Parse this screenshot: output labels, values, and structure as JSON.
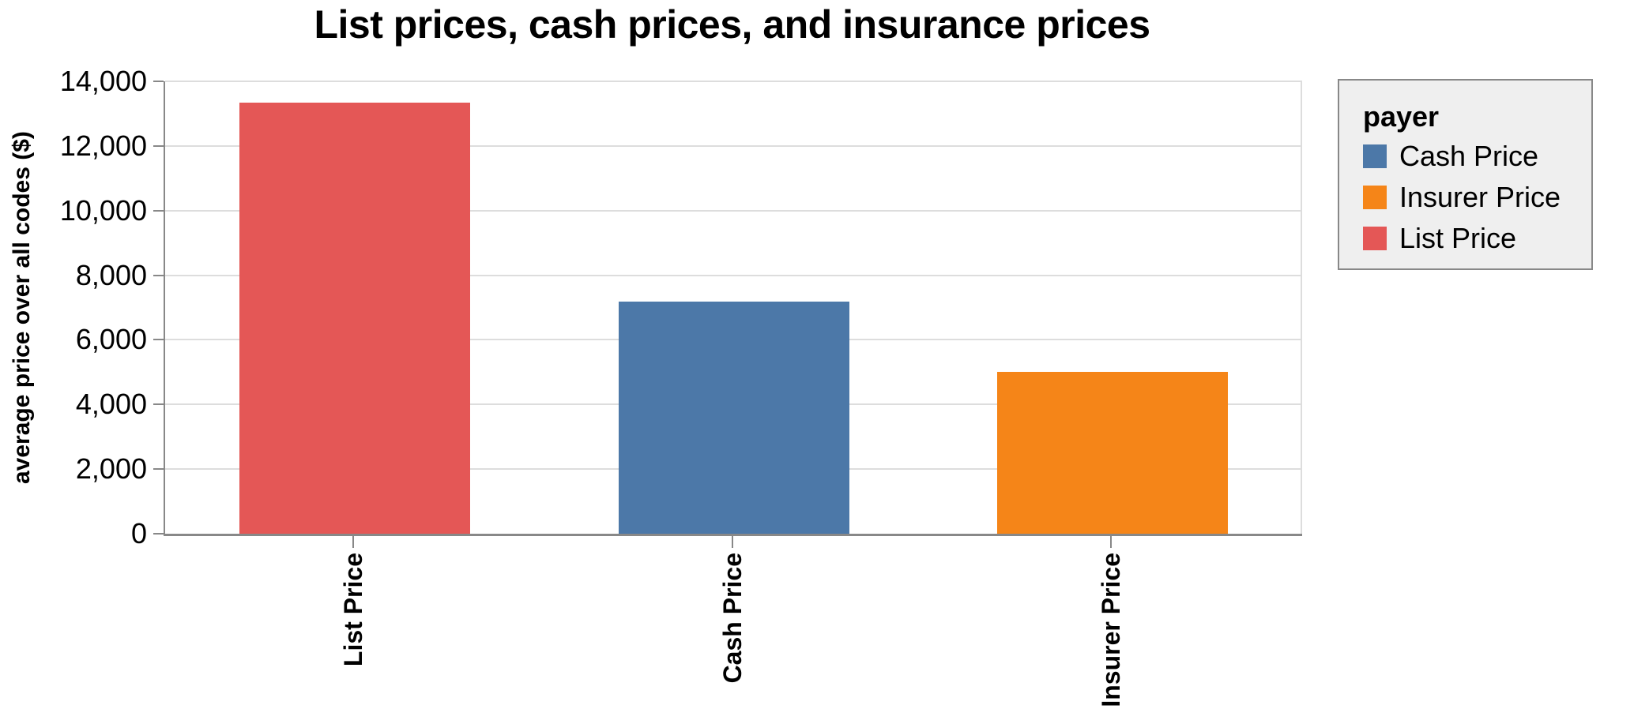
{
  "chart_data": {
    "type": "bar",
    "title": "List prices, cash prices, and insurance prices",
    "ylabel": "average price over all codes ($)",
    "xlabel": "",
    "categories": [
      "List Price",
      "Cash Price",
      "Insurer Price"
    ],
    "values": [
      13350,
      7180,
      5010
    ],
    "bar_colors": [
      "#e45756",
      "#4c78a8",
      "#f58518"
    ],
    "ylim": [
      0,
      14000
    ],
    "yticks": [
      0,
      2000,
      4000,
      6000,
      8000,
      10000,
      12000,
      14000
    ],
    "ytick_labels": [
      "0",
      "2,000",
      "4,000",
      "6,000",
      "8,000",
      "10,000",
      "12,000",
      "14,000"
    ],
    "grid": true,
    "legend": {
      "title": "payer",
      "position": "right",
      "entries": [
        {
          "label": "Cash Price",
          "color": "#4c78a8"
        },
        {
          "label": "Insurer Price",
          "color": "#f58518"
        },
        {
          "label": "List Price",
          "color": "#e45756"
        }
      ]
    }
  },
  "colors": {
    "background": "#ffffff",
    "gridline": "#dddddd",
    "axis": "#888888",
    "text": "#000000",
    "legend_background": "#efefef",
    "legend_border": "#888888"
  }
}
